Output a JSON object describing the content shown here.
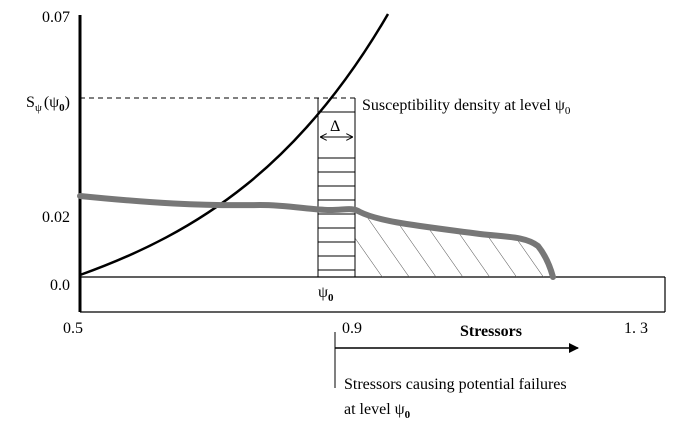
{
  "y_axis": {
    "top": "0.07",
    "level": {
      "symbol": "S",
      "sub": "ψ",
      "arg": "(ψ",
      "arg_sub": "0",
      "close": ")"
    },
    "mid": "0.02",
    "zero": "0.0"
  },
  "x_axis": {
    "left": "0.5",
    "middle": "0.9",
    "right": "1. 3",
    "title": "Stressors"
  },
  "annotations": {
    "susceptibility": {
      "text": "Susceptibility density at level ψ",
      "sub": "0"
    },
    "delta": "Δ",
    "psi0": {
      "text": "ψ",
      "sub": "0"
    },
    "failures_line1": "Stressors causing potential failures",
    "failures_line2": {
      "text": "at level ψ",
      "sub": "0"
    }
  }
}
